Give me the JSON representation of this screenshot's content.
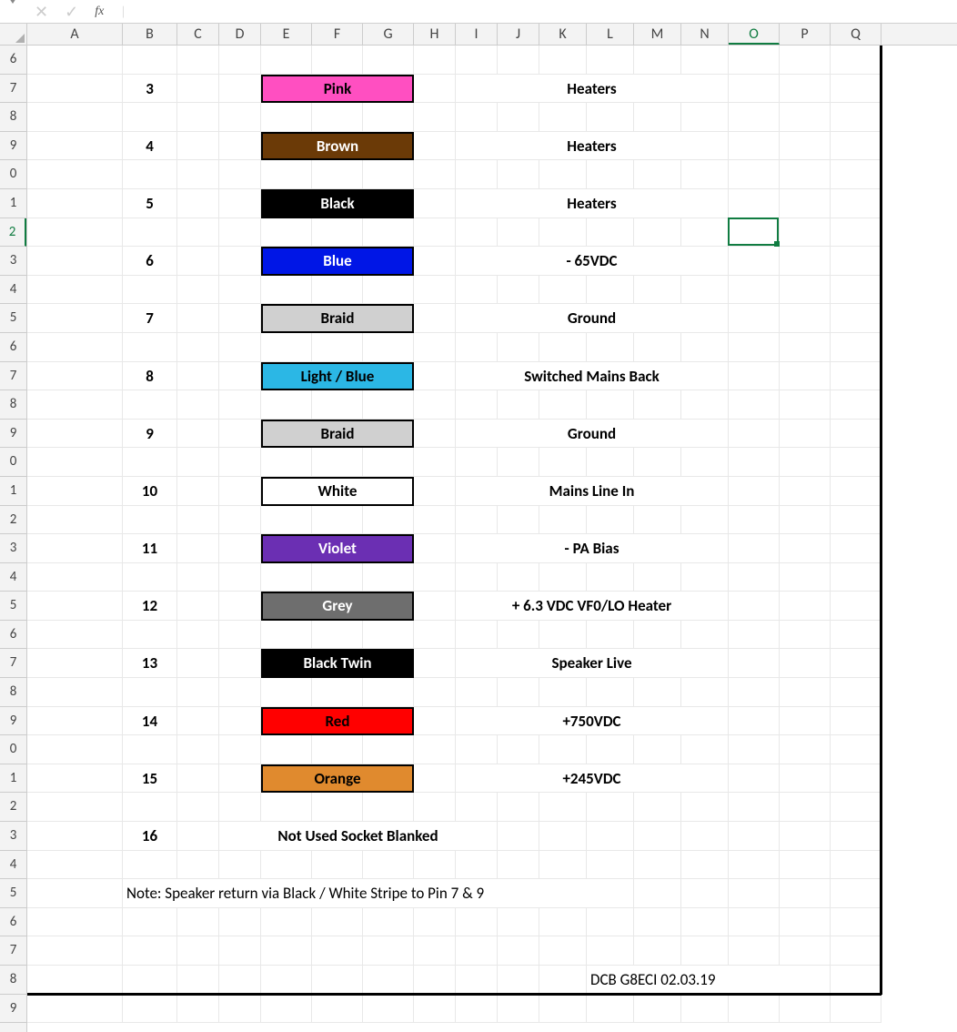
{
  "toolbar": {
    "fx_label": "fx"
  },
  "columns": [
    {
      "letter": "A",
      "width": 105
    },
    {
      "letter": "B",
      "width": 60
    },
    {
      "letter": "C",
      "width": 46
    },
    {
      "letter": "D",
      "width": 46
    },
    {
      "letter": "E",
      "width": 56
    },
    {
      "letter": "F",
      "width": 56
    },
    {
      "letter": "G",
      "width": 56
    },
    {
      "letter": "H",
      "width": 46
    },
    {
      "letter": "I",
      "width": 46
    },
    {
      "letter": "J",
      "width": 46
    },
    {
      "letter": "K",
      "width": 52
    },
    {
      "letter": "L",
      "width": 52
    },
    {
      "letter": "M",
      "width": 52
    },
    {
      "letter": "N",
      "width": 52
    },
    {
      "letter": "O",
      "width": 56,
      "active": true
    },
    {
      "letter": "P",
      "width": 56
    },
    {
      "letter": "Q",
      "width": 56
    }
  ],
  "row_labels": [
    "6",
    "7",
    "8",
    "9",
    "0",
    "1",
    "2",
    "3",
    "4",
    "5",
    "6",
    "7",
    "8",
    "9",
    "0",
    "1",
    "2",
    "3",
    "4",
    "5",
    "6",
    "7",
    "8",
    "9",
    "0",
    "1",
    "2",
    "3",
    "4",
    "5",
    "6",
    "7",
    "8",
    "9"
  ],
  "active_row_index": 6,
  "active_cell": {
    "col_letter": "O",
    "row_label": "2"
  },
  "wire_rows": [
    {
      "grid_row": 1,
      "pin": "3",
      "color_label": "Pink",
      "bg": "#ff4fc1",
      "fg": "#000000",
      "desc": "Heaters"
    },
    {
      "grid_row": 3,
      "pin": "4",
      "color_label": "Brown",
      "bg": "#6b3a07",
      "fg": "#ffffff",
      "desc": "Heaters"
    },
    {
      "grid_row": 5,
      "pin": "5",
      "color_label": "Black",
      "bg": "#000000",
      "fg": "#ffffff",
      "desc": "Heaters"
    },
    {
      "grid_row": 7,
      "pin": "6",
      "color_label": "Blue",
      "bg": "#0016e6",
      "fg": "#ffffff",
      "desc": "- 65VDC"
    },
    {
      "grid_row": 9,
      "pin": "7",
      "color_label": "Braid",
      "bg": "#d0d0d0",
      "fg": "#000000",
      "desc": "Ground"
    },
    {
      "grid_row": 11,
      "pin": "8",
      "color_label": "Light / Blue",
      "bg": "#2bb7e5",
      "fg": "#000000",
      "desc": "Switched Mains Back"
    },
    {
      "grid_row": 13,
      "pin": "9",
      "color_label": "Braid",
      "bg": "#d0d0d0",
      "fg": "#000000",
      "desc": "Ground"
    },
    {
      "grid_row": 15,
      "pin": "10",
      "color_label": "White",
      "bg": "#ffffff",
      "fg": "#000000",
      "desc": "Mains Line In"
    },
    {
      "grid_row": 17,
      "pin": "11",
      "color_label": "Violet",
      "bg": "#6b2fb3",
      "fg": "#ffffff",
      "desc": "- PA Bias"
    },
    {
      "grid_row": 19,
      "pin": "12",
      "color_label": "Grey",
      "bg": "#6e6e6e",
      "fg": "#ffffff",
      "desc": "+ 6.3 VDC VF0/LO Heater"
    },
    {
      "grid_row": 21,
      "pin": "13",
      "color_label": "Black Twin",
      "bg": "#000000",
      "fg": "#ffffff",
      "desc": "Speaker Live"
    },
    {
      "grid_row": 23,
      "pin": "14",
      "color_label": "Red",
      "bg": "#ff0000",
      "fg": "#000000",
      "desc": "+750VDC"
    },
    {
      "grid_row": 25,
      "pin": "15",
      "color_label": "Orange",
      "bg": "#e08a2e",
      "fg": "#000000",
      "desc": "+245VDC"
    }
  ],
  "blank_row": {
    "grid_row": 27,
    "pin": "16",
    "text": "Not Used Socket Blanked"
  },
  "note_row": {
    "grid_row": 29,
    "text": "Note: Speaker return via Black / White Stripe to Pin 7 & 9"
  },
  "footer_row": {
    "grid_row": 32,
    "text": "DCB G8ECI 02.03.19"
  },
  "print_area": {
    "right_after_col": "Q",
    "bottom_after_row_index": 32
  },
  "grid": {
    "row_height": 31.6,
    "row_header_width": 30,
    "gridline_color": "#e8e8e8",
    "header_bg": "#f3f3f3",
    "active_color": "#107c41"
  }
}
